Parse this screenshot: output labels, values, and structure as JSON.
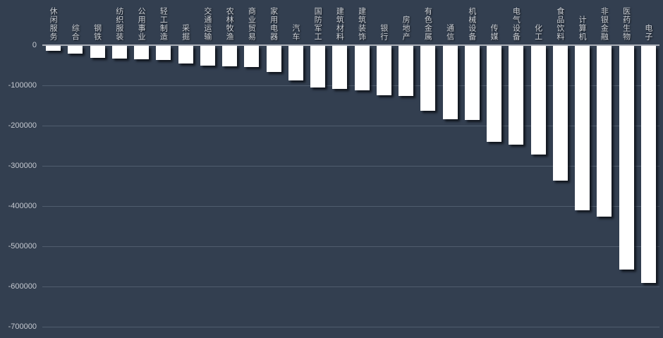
{
  "window": {
    "background_color": "#333f50"
  },
  "chart_data": {
    "type": "bar",
    "title": "",
    "xlabel": "",
    "ylabel": "",
    "orientation": "vertical",
    "grid": true,
    "legend": "none",
    "bar_color": "#ffffff",
    "label_color": "#ccd0d6",
    "gridline_color": "#828ea0",
    "zero_axis_color": "#a9aeb7",
    "ylim": [
      -700000,
      0
    ],
    "y_tick_labels": [
      "0",
      "-100000",
      "-200000",
      "-300000",
      "-400000",
      "-500000",
      "-600000",
      "-700000"
    ],
    "y_tick_values": [
      0,
      -100000,
      -200000,
      -300000,
      -400000,
      -500000,
      -600000,
      -700000
    ],
    "categories": [
      "休闲服务",
      "综合",
      "钢铁",
      "纺织服装",
      "公用事业",
      "轻工制造",
      "采掘",
      "交通运输",
      "农林牧渔",
      "商业贸易",
      "家用电器",
      "汽车",
      "国防军工",
      "建筑材料",
      "建筑装饰",
      "银行",
      "房地产",
      "有色金属",
      "通信",
      "机械设备",
      "传媒",
      "电气设备",
      "化工",
      "食品饮料",
      "计算机",
      "非银金融",
      "医药生物",
      "电子"
    ],
    "values": [
      -12000,
      -19000,
      -30000,
      -32000,
      -33000,
      -35000,
      -43000,
      -49000,
      -50000,
      -53000,
      -65000,
      -86000,
      -103000,
      -107000,
      -110000,
      -122000,
      -124000,
      -162000,
      -182000,
      -184000,
      -238000,
      -245000,
      -270000,
      -335000,
      -408000,
      -424000,
      -556000,
      -589000
    ]
  }
}
